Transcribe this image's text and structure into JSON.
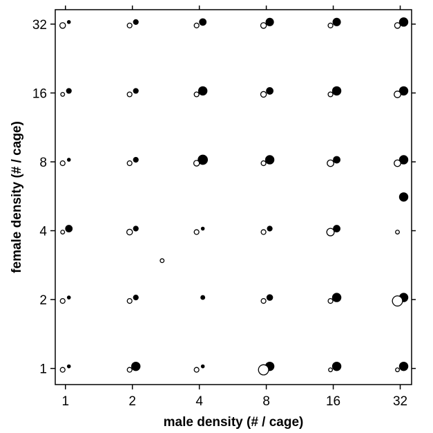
{
  "chart_data": {
    "type": "scatter",
    "title": "",
    "xlabel": "male density (# / cage)",
    "ylabel": "female density (# / cage)",
    "x_scale": "log2",
    "y_scale": "log2",
    "x_ticks": [
      "1",
      "2",
      "4",
      "8",
      "16",
      "32"
    ],
    "y_ticks": [
      "1",
      "2",
      "4",
      "8",
      "16",
      "32"
    ],
    "x_tick_values": [
      1,
      2,
      4,
      8,
      16,
      32
    ],
    "y_tick_values": [
      1,
      2,
      4,
      8,
      16,
      32
    ],
    "xlim": [
      0.9,
      36
    ],
    "ylim": [
      0.85,
      37
    ],
    "grid": false,
    "colors": {
      "filled": "#000000",
      "open_fill": "#ffffff",
      "open_stroke": "#000000"
    },
    "series": [
      {
        "marker": "filled-circle",
        "points": [
          {
            "x": 1,
            "y": 1,
            "size": 1
          },
          {
            "x": 2,
            "y": 1,
            "size": 4
          },
          {
            "x": 4,
            "y": 1,
            "size": 1
          },
          {
            "x": 8,
            "y": 1,
            "size": 4
          },
          {
            "x": 16,
            "y": 1,
            "size": 4
          },
          {
            "x": 32,
            "y": 1,
            "size": 4
          },
          {
            "x": 1,
            "y": 2,
            "size": 1
          },
          {
            "x": 2,
            "y": 2,
            "size": 2
          },
          {
            "x": 4,
            "y": 2,
            "size": 1.5
          },
          {
            "x": 8,
            "y": 2,
            "size": 2.5
          },
          {
            "x": 16,
            "y": 2,
            "size": 4
          },
          {
            "x": 32,
            "y": 2,
            "size": 4
          },
          {
            "x": 1,
            "y": 4,
            "size": 3
          },
          {
            "x": 2,
            "y": 4,
            "size": 2
          },
          {
            "x": 4,
            "y": 4,
            "size": 1
          },
          {
            "x": 8,
            "y": 4,
            "size": 2
          },
          {
            "x": 16,
            "y": 4,
            "size": 3
          },
          {
            "x": 32,
            "y": 5.5,
            "size": 4
          },
          {
            "x": 1,
            "y": 8,
            "size": 1
          },
          {
            "x": 2,
            "y": 8,
            "size": 2
          },
          {
            "x": 4,
            "y": 8,
            "size": 4.5
          },
          {
            "x": 8,
            "y": 8,
            "size": 4
          },
          {
            "x": 16,
            "y": 8,
            "size": 3
          },
          {
            "x": 32,
            "y": 8,
            "size": 4
          },
          {
            "x": 1,
            "y": 16,
            "size": 2
          },
          {
            "x": 2,
            "y": 16,
            "size": 2
          },
          {
            "x": 4,
            "y": 16,
            "size": 4
          },
          {
            "x": 8,
            "y": 16,
            "size": 3
          },
          {
            "x": 16,
            "y": 16,
            "size": 4
          },
          {
            "x": 32,
            "y": 16,
            "size": 4
          },
          {
            "x": 1,
            "y": 32,
            "size": 1
          },
          {
            "x": 2,
            "y": 32,
            "size": 2
          },
          {
            "x": 4,
            "y": 32,
            "size": 3
          },
          {
            "x": 8,
            "y": 32,
            "size": 3.5
          },
          {
            "x": 16,
            "y": 32,
            "size": 3.5
          },
          {
            "x": 32,
            "y": 32,
            "size": 4
          }
        ]
      },
      {
        "marker": "open-circle",
        "points": [
          {
            "x": 1,
            "y": 1,
            "size": 1.5
          },
          {
            "x": 2,
            "y": 1,
            "size": 1.5
          },
          {
            "x": 4,
            "y": 1,
            "size": 1.5
          },
          {
            "x": 8,
            "y": 1,
            "size": 4.5
          },
          {
            "x": 16,
            "y": 1,
            "size": 1
          },
          {
            "x": 32,
            "y": 1,
            "size": 1
          },
          {
            "x": 1,
            "y": 2,
            "size": 1.5
          },
          {
            "x": 2,
            "y": 2,
            "size": 1.5
          },
          {
            "x": 8,
            "y": 2,
            "size": 1.5
          },
          {
            "x": 16,
            "y": 2,
            "size": 1.5
          },
          {
            "x": 32,
            "y": 2,
            "size": 4.5
          },
          {
            "x": 2.8,
            "y": 3,
            "size": 1
          },
          {
            "x": 1,
            "y": 4,
            "size": 1
          },
          {
            "x": 2,
            "y": 4,
            "size": 2
          },
          {
            "x": 4,
            "y": 4,
            "size": 1.5
          },
          {
            "x": 8,
            "y": 4,
            "size": 1.5
          },
          {
            "x": 16,
            "y": 4,
            "size": 3
          },
          {
            "x": 32,
            "y": 4,
            "size": 1
          },
          {
            "x": 1,
            "y": 8,
            "size": 1.5
          },
          {
            "x": 2,
            "y": 8,
            "size": 1.5
          },
          {
            "x": 4,
            "y": 8,
            "size": 2
          },
          {
            "x": 8,
            "y": 8,
            "size": 1.5
          },
          {
            "x": 16,
            "y": 8,
            "size": 2.5
          },
          {
            "x": 32,
            "y": 8,
            "size": 2.5
          },
          {
            "x": 1,
            "y": 16,
            "size": 1
          },
          {
            "x": 2,
            "y": 16,
            "size": 1.5
          },
          {
            "x": 4,
            "y": 16,
            "size": 1.5
          },
          {
            "x": 8,
            "y": 16,
            "size": 2
          },
          {
            "x": 16,
            "y": 16,
            "size": 1.5
          },
          {
            "x": 32,
            "y": 16,
            "size": 2.5
          },
          {
            "x": 1,
            "y": 32,
            "size": 2
          },
          {
            "x": 2,
            "y": 32,
            "size": 1.5
          },
          {
            "x": 4,
            "y": 32,
            "size": 1.5
          },
          {
            "x": 8,
            "y": 32,
            "size": 2
          },
          {
            "x": 16,
            "y": 32,
            "size": 1.5
          },
          {
            "x": 32,
            "y": 32,
            "size": 2
          }
        ]
      }
    ]
  }
}
